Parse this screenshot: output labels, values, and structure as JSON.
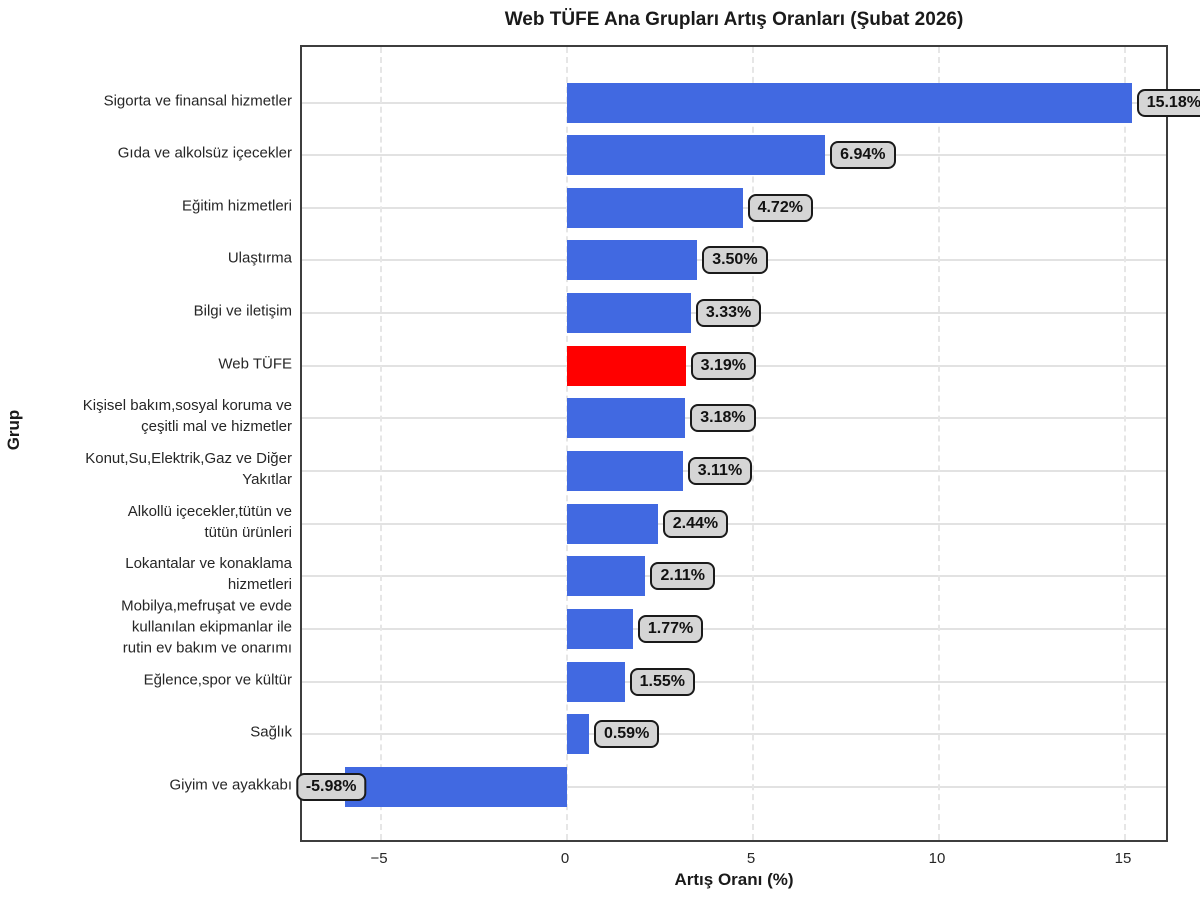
{
  "chart_data": {
    "type": "bar",
    "orientation": "horizontal",
    "title": "Web TÜFE Ana Grupları Artış Oranları (Şubat 2026)",
    "xlabel": "Artış Oranı (%)",
    "ylabel": "Grup",
    "xlim": [
      -7.1,
      16.2
    ],
    "grid": {
      "horizontal": "solid lines at each category",
      "vertical": "dashed lines at x ticks"
    },
    "legend_position": "none",
    "xticks": [
      {
        "value": -5,
        "label": "−5"
      },
      {
        "value": 0,
        "label": "0"
      },
      {
        "value": 5,
        "label": "5"
      },
      {
        "value": 10,
        "label": "10"
      },
      {
        "value": 15,
        "label": "15"
      }
    ],
    "bars": [
      {
        "category": "Sigorta ve finansal hizmetler",
        "label_lines": [
          "Sigorta ve finansal hizmetler"
        ],
        "value": 15.18,
        "value_label": "15.18%",
        "color_key": "default"
      },
      {
        "category": "Gıda ve alkolsüz içecekler",
        "label_lines": [
          "Gıda ve alkolsüz içecekler"
        ],
        "value": 6.94,
        "value_label": "6.94%",
        "color_key": "default"
      },
      {
        "category": "Eğitim hizmetleri",
        "label_lines": [
          "Eğitim hizmetleri"
        ],
        "value": 4.72,
        "value_label": "4.72%",
        "color_key": "default"
      },
      {
        "category": "Ulaştırma",
        "label_lines": [
          "Ulaştırma"
        ],
        "value": 3.5,
        "value_label": "3.50%",
        "color_key": "default"
      },
      {
        "category": "Bilgi ve iletişim",
        "label_lines": [
          "Bilgi ve iletişim"
        ],
        "value": 3.33,
        "value_label": "3.33%",
        "color_key": "default"
      },
      {
        "category": "Web TÜFE",
        "label_lines": [
          "Web TÜFE"
        ],
        "value": 3.19,
        "value_label": "3.19%",
        "color_key": "highlight"
      },
      {
        "category": "Kişisel bakım,sosyal koruma ve çeşitli mal ve hizmetler",
        "label_lines": [
          "Kişisel bakım,sosyal koruma ve",
          "çeşitli mal ve hizmetler"
        ],
        "value": 3.18,
        "value_label": "3.18%",
        "color_key": "default"
      },
      {
        "category": "Konut,Su,Elektrik,Gaz ve Diğer Yakıtlar",
        "label_lines": [
          "Konut,Su,Elektrik,Gaz ve Diğer",
          "Yakıtlar"
        ],
        "value": 3.11,
        "value_label": "3.11%",
        "color_key": "default"
      },
      {
        "category": "Alkollü içecekler,tütün ve tütün ürünleri",
        "label_lines": [
          "Alkollü içecekler,tütün ve",
          "tütün ürünleri"
        ],
        "value": 2.44,
        "value_label": "2.44%",
        "color_key": "default"
      },
      {
        "category": "Lokantalar ve konaklama hizmetleri",
        "label_lines": [
          "Lokantalar ve konaklama",
          "hizmetleri"
        ],
        "value": 2.11,
        "value_label": "2.11%",
        "color_key": "default"
      },
      {
        "category": "Mobilya,mefruşat ve evde kullanılan ekipmanlar ile rutin ev bakım ve onarımı",
        "label_lines": [
          "Mobilya,mefruşat ve evde",
          "kullanılan ekipmanlar ile",
          "rutin ev bakım ve onarımı"
        ],
        "value": 1.77,
        "value_label": "1.77%",
        "color_key": "default"
      },
      {
        "category": "Eğlence,spor ve kültür",
        "label_lines": [
          "Eğlence,spor ve kültür"
        ],
        "value": 1.55,
        "value_label": "1.55%",
        "color_key": "default"
      },
      {
        "category": "Sağlık",
        "label_lines": [
          "Sağlık"
        ],
        "value": 0.59,
        "value_label": "0.59%",
        "color_key": "default"
      },
      {
        "category": "Giyim ve ayakkabı",
        "label_lines": [
          "Giyim ve ayakkabı"
        ],
        "value": -5.98,
        "value_label": "-5.98%",
        "color_key": "default"
      }
    ],
    "colors": {
      "default": "#4169E1",
      "highlight": "#FF0000",
      "value_box_bg": "#d5d5d5",
      "value_box_border": "#1a1a1a",
      "plot_border": "#3d3d3d",
      "grid_h": "#e2e2e2",
      "grid_v": "#e6e6e6"
    }
  }
}
